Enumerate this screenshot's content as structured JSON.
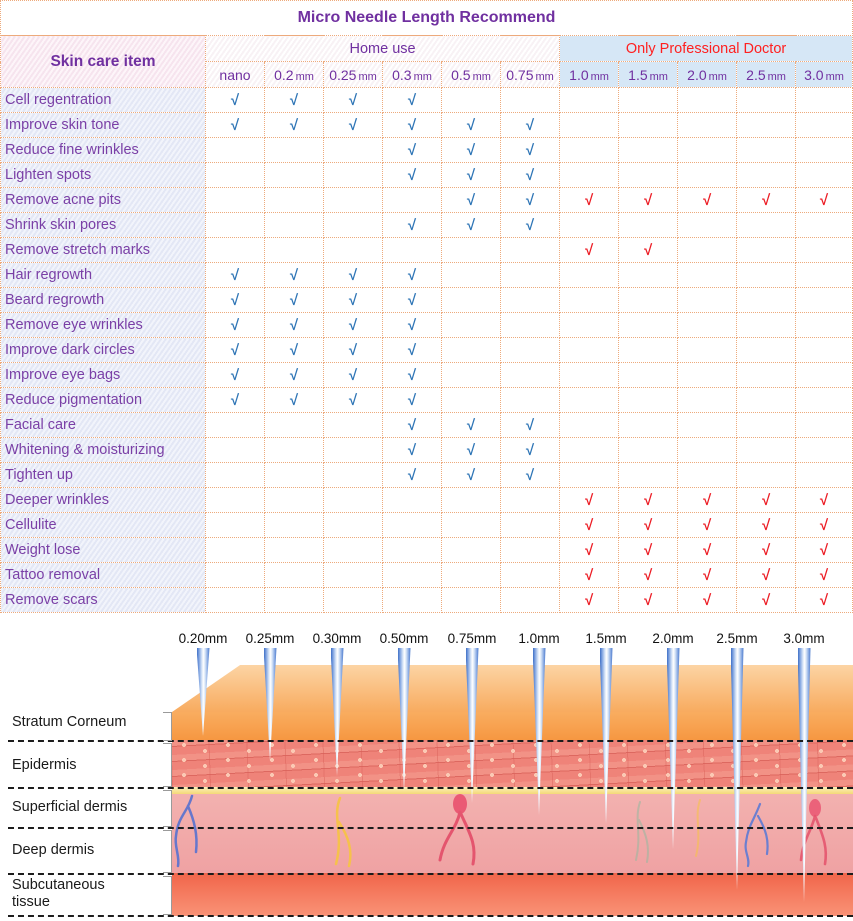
{
  "title": "Micro Needle Length Recommend",
  "check_symbol": "√",
  "colors": {
    "title_purple": "#7030a0",
    "row_label_purple": "#7a3fa6",
    "pro_header_red": "#ff2020",
    "check_blue": "#2e75b6",
    "check_red": "#ec1c24",
    "grid_dotted_orange": "#edaa7c",
    "pro_header_bg": "#d6e7f6"
  },
  "table": {
    "corner_header": "Skin care item",
    "groups": [
      {
        "label": "Home use",
        "span": 6
      },
      {
        "label": "Only Professional Doctor",
        "span": 5
      }
    ],
    "columns": [
      {
        "value": "nano",
        "unit": ""
      },
      {
        "value": "0.2",
        "unit": "mm"
      },
      {
        "value": "0.25",
        "unit": "mm"
      },
      {
        "value": "0.3",
        "unit": "mm"
      },
      {
        "value": "0.5",
        "unit": "mm"
      },
      {
        "value": "0.75",
        "unit": "mm"
      },
      {
        "value": "1.0",
        "unit": "mm"
      },
      {
        "value": "1.5",
        "unit": "mm"
      },
      {
        "value": "2.0",
        "unit": "mm"
      },
      {
        "value": "2.5",
        "unit": "mm"
      },
      {
        "value": "3.0",
        "unit": "mm"
      }
    ],
    "rows": [
      {
        "label": "Cell regentration",
        "checks": [
          1,
          1,
          1,
          1,
          0,
          0,
          0,
          0,
          0,
          0,
          0
        ]
      },
      {
        "label": "Improve skin tone",
        "checks": [
          1,
          1,
          1,
          1,
          1,
          1,
          0,
          0,
          0,
          0,
          0
        ]
      },
      {
        "label": "Reduce fine wrinkles",
        "checks": [
          0,
          0,
          0,
          1,
          1,
          1,
          0,
          0,
          0,
          0,
          0
        ]
      },
      {
        "label": "Lighten spots",
        "checks": [
          0,
          0,
          0,
          1,
          1,
          1,
          0,
          0,
          0,
          0,
          0
        ]
      },
      {
        "label": "Remove acne pits",
        "checks": [
          0,
          0,
          0,
          0,
          1,
          1,
          2,
          2,
          2,
          2,
          2
        ]
      },
      {
        "label": "Shrink skin pores",
        "checks": [
          0,
          0,
          0,
          1,
          1,
          1,
          0,
          0,
          0,
          0,
          0
        ]
      },
      {
        "label": "Remove stretch marks",
        "checks": [
          0,
          0,
          0,
          0,
          0,
          0,
          2,
          2,
          0,
          0,
          0
        ]
      },
      {
        "label": "Hair regrowth",
        "checks": [
          1,
          1,
          1,
          1,
          0,
          0,
          0,
          0,
          0,
          0,
          0
        ]
      },
      {
        "label": "Beard regrowth",
        "checks": [
          1,
          1,
          1,
          1,
          0,
          0,
          0,
          0,
          0,
          0,
          0
        ]
      },
      {
        "label": "Remove eye wrinkles",
        "checks": [
          1,
          1,
          1,
          1,
          0,
          0,
          0,
          0,
          0,
          0,
          0
        ]
      },
      {
        "label": "Improve dark circles",
        "checks": [
          1,
          1,
          1,
          1,
          0,
          0,
          0,
          0,
          0,
          0,
          0
        ]
      },
      {
        "label": "Improve eye bags",
        "checks": [
          1,
          1,
          1,
          1,
          0,
          0,
          0,
          0,
          0,
          0,
          0
        ]
      },
      {
        "label": "Reduce pigmentation",
        "checks": [
          1,
          1,
          1,
          1,
          0,
          0,
          0,
          0,
          0,
          0,
          0
        ]
      },
      {
        "label": "Facial care",
        "checks": [
          0,
          0,
          0,
          1,
          1,
          1,
          0,
          0,
          0,
          0,
          0
        ]
      },
      {
        "label": "Whitening & moisturizing",
        "checks": [
          0,
          0,
          0,
          1,
          1,
          1,
          0,
          0,
          0,
          0,
          0
        ]
      },
      {
        "label": "Tighten up",
        "checks": [
          0,
          0,
          0,
          1,
          1,
          1,
          0,
          0,
          0,
          0,
          0
        ]
      },
      {
        "label": "Deeper wrinkles",
        "checks": [
          0,
          0,
          0,
          0,
          0,
          0,
          2,
          2,
          2,
          2,
          2
        ]
      },
      {
        "label": "Cellulite",
        "checks": [
          0,
          0,
          0,
          0,
          0,
          0,
          2,
          2,
          2,
          2,
          2
        ]
      },
      {
        "label": "Weight lose",
        "checks": [
          0,
          0,
          0,
          0,
          0,
          0,
          2,
          2,
          2,
          2,
          2
        ]
      },
      {
        "label": "Tattoo removal",
        "checks": [
          0,
          0,
          0,
          0,
          0,
          0,
          2,
          2,
          2,
          2,
          2
        ]
      },
      {
        "label": "Remove scars",
        "checks": [
          0,
          0,
          0,
          0,
          0,
          0,
          2,
          2,
          2,
          2,
          2
        ]
      }
    ]
  },
  "illustration": {
    "needle_labels": [
      "0.20mm",
      "0.25mm",
      "0.30mm",
      "0.50mm",
      "0.75mm",
      "1.0mm",
      "1.5mm",
      "2.0mm",
      "2.5mm",
      "3.0mm"
    ],
    "layer_labels": [
      "Stratum Corneum",
      "Epidermis",
      "Superficial dermis",
      "Deep dermis",
      "Subcutaneous tissue"
    ]
  }
}
